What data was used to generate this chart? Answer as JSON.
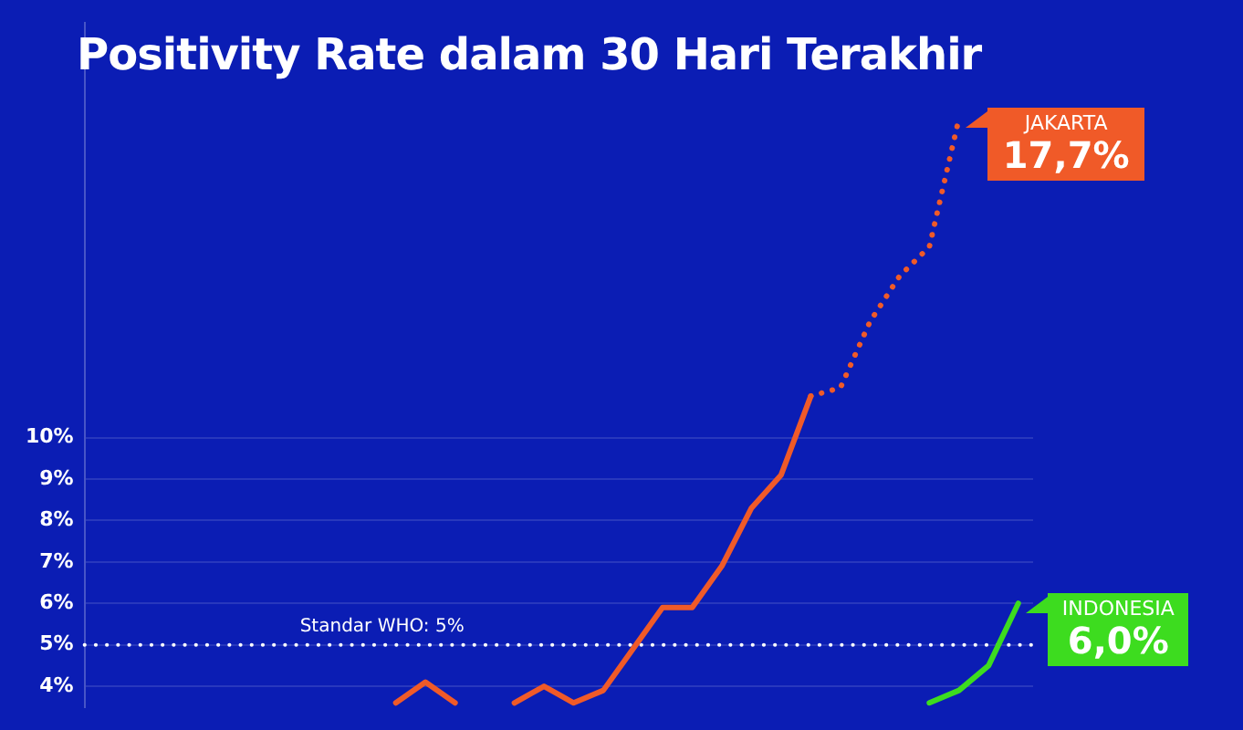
{
  "chart_data": {
    "type": "line",
    "title": "Positivity Rate dalam 30 Hari Terakhir",
    "categories": [
      null,
      null,
      null,
      null,
      null,
      null,
      null,
      null,
      null,
      null,
      null,
      null,
      null,
      null,
      null,
      null,
      null,
      null,
      null,
      null,
      null,
      null,
      null,
      null,
      null,
      null,
      null,
      null,
      null,
      null,
      null,
      null
    ],
    "series": [
      {
        "color": "#f05a28",
        "line_style": "solid",
        "values": [
          null,
          null,
          null,
          null,
          null,
          null,
          null,
          null,
          null,
          null,
          3.6,
          4.1,
          3.6,
          null,
          3.6,
          4.0,
          3.6,
          3.9,
          4.9,
          5.9,
          5.9,
          6.9,
          8.3,
          9.1,
          11.0,
          null,
          null,
          null,
          null,
          null,
          null,
          null
        ]
      },
      {
        "name": "JAKARTA",
        "color": "#f05a28",
        "line_style": "dotted",
        "values": [
          null,
          null,
          null,
          null,
          null,
          null,
          null,
          null,
          null,
          null,
          null,
          null,
          null,
          null,
          null,
          null,
          null,
          null,
          null,
          null,
          null,
          null,
          null,
          null,
          11.0,
          11.2,
          12.8,
          13.9,
          14.6,
          17.7,
          null,
          null
        ],
        "value_labels": [
          null,
          null,
          null,
          null,
          null,
          null,
          null,
          null,
          null,
          null,
          null,
          null,
          null,
          null,
          null,
          null,
          null,
          null,
          null,
          null,
          null,
          null,
          null,
          null,
          null,
          null,
          null,
          null,
          null,
          "17,7%",
          null,
          null
        ]
      },
      {
        "name": "INDONESIA",
        "color": "#3ddc1f",
        "line_style": "solid",
        "values": [
          null,
          null,
          null,
          null,
          null,
          null,
          null,
          null,
          null,
          null,
          null,
          null,
          null,
          null,
          null,
          null,
          null,
          null,
          null,
          null,
          null,
          null,
          null,
          null,
          null,
          null,
          null,
          null,
          3.6,
          3.9,
          4.5,
          6.0
        ],
        "value_labels": [
          null,
          null,
          null,
          null,
          null,
          null,
          null,
          null,
          null,
          null,
          null,
          null,
          null,
          null,
          null,
          null,
          null,
          null,
          null,
          null,
          null,
          null,
          null,
          null,
          null,
          null,
          null,
          null,
          null,
          null,
          null,
          "6,0%"
        ]
      }
    ],
    "ylim": [
      3.5,
      20
    ],
    "yticks": [
      {
        "value": 4,
        "label": "4%"
      },
      {
        "value": 5,
        "label": "5%"
      },
      {
        "value": 6,
        "label": "6%"
      },
      {
        "value": 7,
        "label": "7%"
      },
      {
        "value": 8,
        "label": "8%"
      },
      {
        "value": 9,
        "label": "9%"
      },
      {
        "value": 10,
        "label": "10%"
      }
    ],
    "ref_lines": [
      {
        "axis": "y",
        "value": 5,
        "label": "Standar WHO: 5%",
        "color": "#ffffff",
        "line_style": "dotted"
      }
    ],
    "grid": "y",
    "legend": "right",
    "tick_labels": "y",
    "marker": "none"
  }
}
